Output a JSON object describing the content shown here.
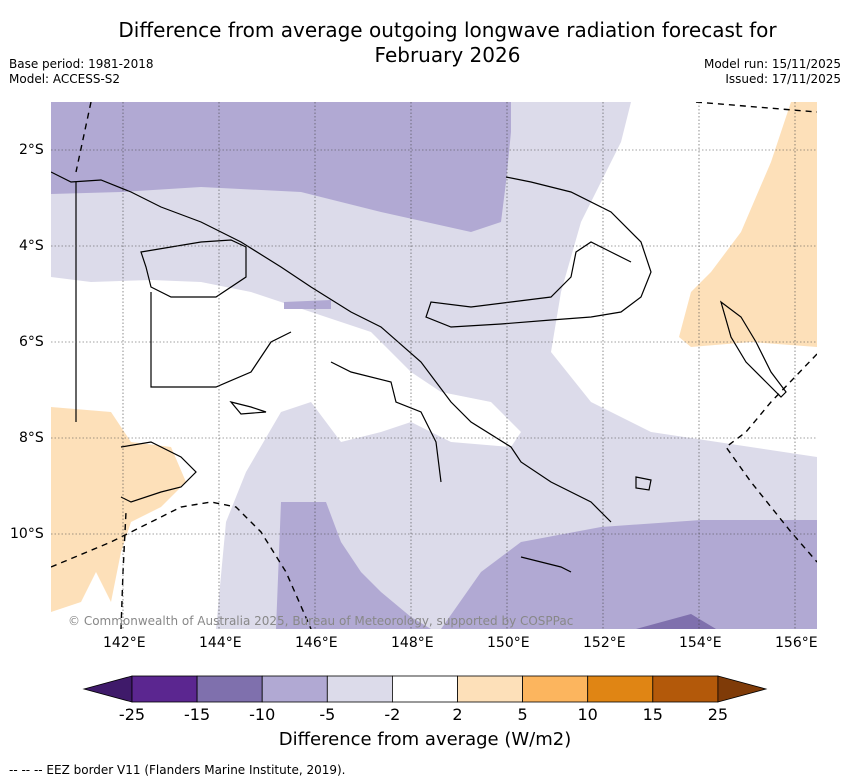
{
  "title": {
    "line1": "Difference from average outgoing longwave radiation forecast for",
    "line2": "February 2026"
  },
  "meta": {
    "base_period": "Base period: 1981-2018",
    "model": "Model: ACCESS-S2",
    "model_run": "Model run: 15/11/2025",
    "issued": "Issued: 17/11/2025"
  },
  "map": {
    "lat_labels": [
      "2°S",
      "4°S",
      "6°S",
      "8°S",
      "10°S"
    ],
    "lon_labels": [
      "142°E",
      "144°E",
      "146°E",
      "148°E",
      "150°E",
      "152°E",
      "154°E",
      "156°E"
    ],
    "copyright": "© Commonwealth of Australia 2025, Bureau of Meteorology, supported by COSPPac"
  },
  "colorbar": {
    "ticks": [
      "-25",
      "-15",
      "-10",
      "-5",
      "-2",
      "2",
      "5",
      "10",
      "15",
      "25"
    ],
    "colors": [
      "#3f1a6a",
      "#5b2690",
      "#7f70ad",
      "#b1a9d3",
      "#dcdbea",
      "#ffffff",
      "#fde0b9",
      "#fcb55e",
      "#e08514",
      "#b3590a",
      "#7f3b08"
    ],
    "label": "Difference from average (W/m2)"
  },
  "footer": {
    "eez_note": "--  --  -- EEZ border V11 (Flanders Marine Institute, 2019)."
  }
}
